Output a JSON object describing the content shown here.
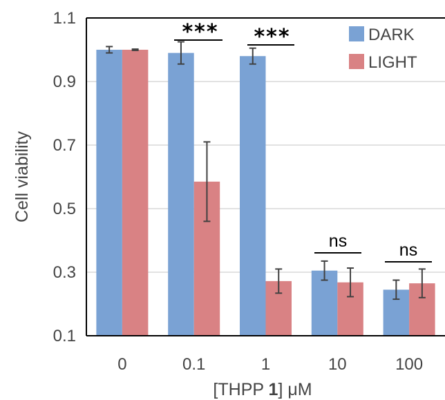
{
  "chart_data": {
    "type": "bar",
    "categories": [
      "0",
      "0.1",
      "1",
      "10",
      "100"
    ],
    "series": [
      {
        "name": "DARK",
        "color": "#7aa2d4",
        "values": [
          1.0,
          0.99,
          0.98,
          0.305,
          0.245
        ],
        "errors": [
          0.01,
          0.035,
          0.025,
          0.03,
          0.03
        ]
      },
      {
        "name": "LIGHT",
        "color": "#d98284",
        "values": [
          1.0,
          0.585,
          0.272,
          0.268,
          0.265
        ],
        "errors": [
          0.002,
          0.125,
          0.038,
          0.045,
          0.045
        ]
      }
    ],
    "yticks": [
      "0.1",
      "0.3",
      "0.5",
      "0.7",
      "0.9",
      "1.1"
    ],
    "ylim": [
      0.1,
      1.1
    ],
    "ylabel": "Cell viability",
    "xlabel": {
      "before": "[THPP ",
      "bold": "1",
      "after": "] μM"
    },
    "significance": [
      "***",
      "***",
      "ns",
      "ns"
    ],
    "legend_position": "top-right",
    "grid": true,
    "gridline_color": "#d9d9d9",
    "axis_color": "#000000"
  }
}
